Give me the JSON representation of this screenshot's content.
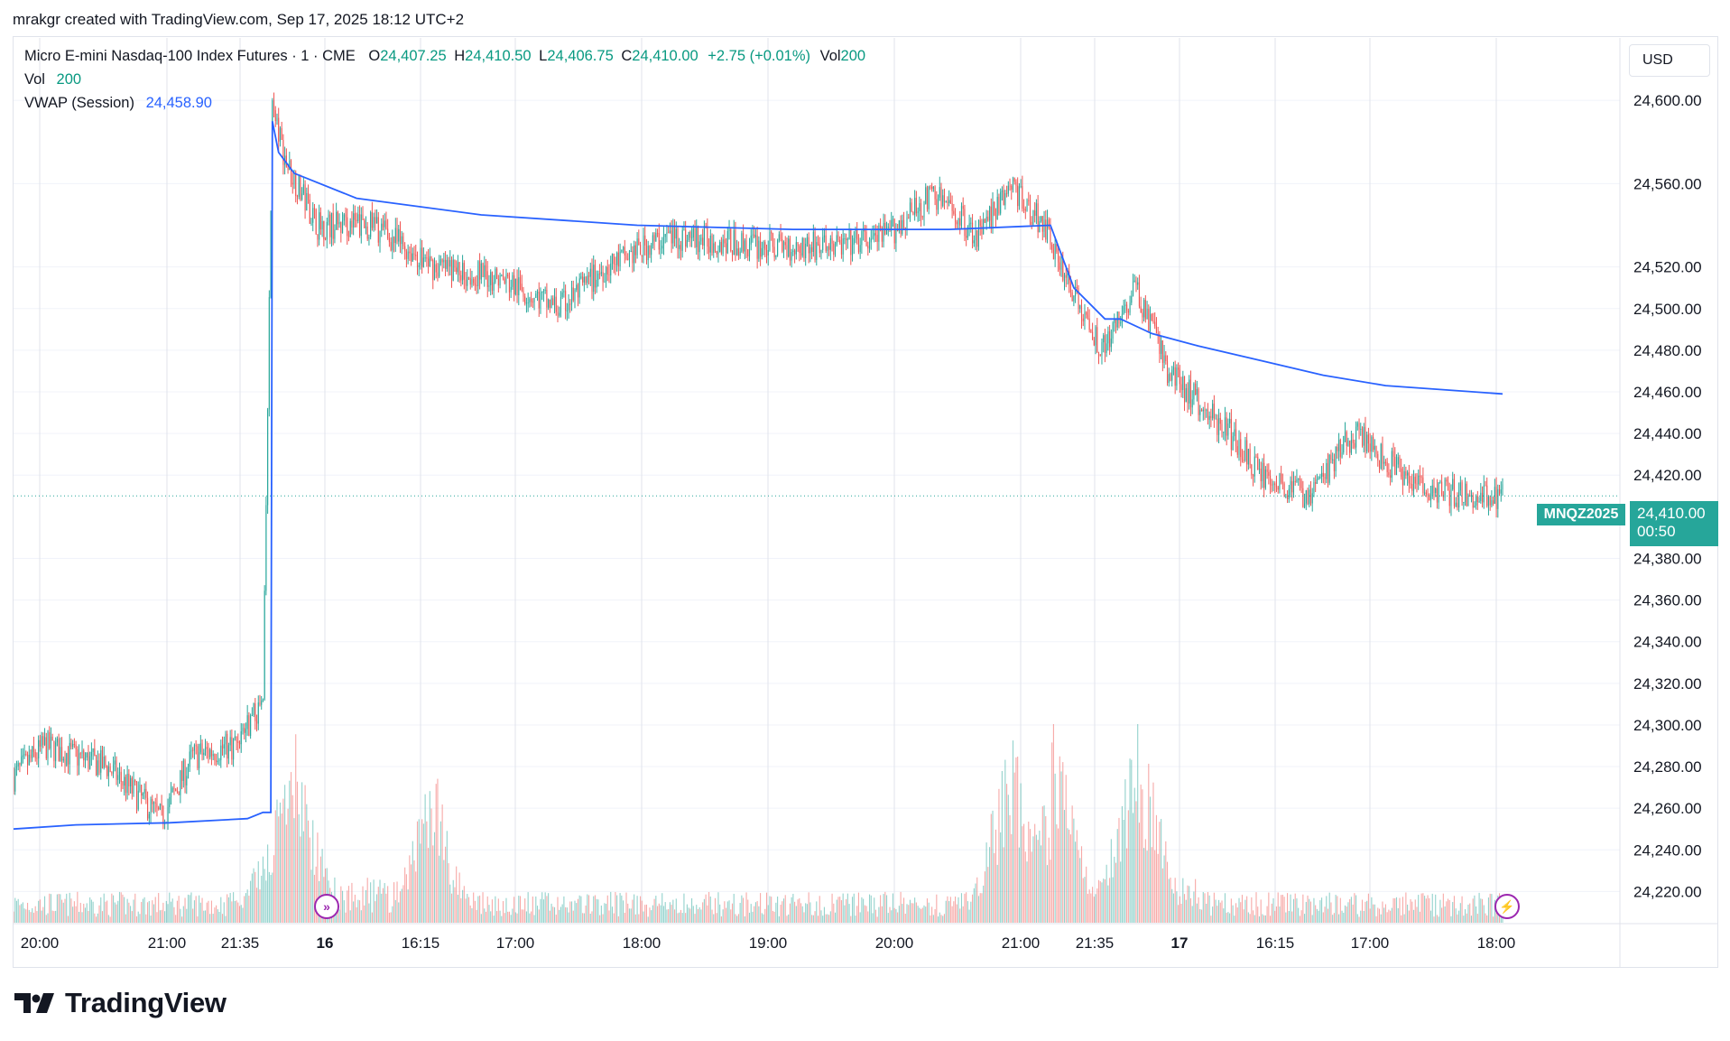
{
  "header": {
    "attribution": "mrakgr created with TradingView.com, Sep 17, 2025 18:12 UTC+2"
  },
  "legend": {
    "symbol": "Micro E-mini Nasdaq-100 Index Futures · 1 · CME",
    "o_label": "O",
    "o_value": "24,407.25",
    "h_label": "H",
    "h_value": "24,410.50",
    "l_label": "L",
    "l_value": "24,406.75",
    "c_label": "C",
    "c_value": "24,410.00",
    "change": "+2.75 (+0.01%)",
    "vol_label": "Vol",
    "vol_value": "200",
    "vol_row_label": "Vol",
    "vol_row_value": "200",
    "vwap_label": "VWAP (Session)",
    "vwap_value": "24,458.90"
  },
  "currency": "USD",
  "last_price": {
    "symbol": "MNQZ2025",
    "price": "24,410.00",
    "countdown": "00:50"
  },
  "logo": {
    "text": "TradingView"
  },
  "colors": {
    "up": "#26a69a",
    "down": "#ef5350",
    "vwap": "#2962ff",
    "grid": "#e0e3eb",
    "session_marker": "#9c27b0"
  },
  "icons": {
    "session_start": "session-break-icon",
    "realtime": "lightning-icon"
  },
  "chart_data": {
    "type": "candlestick",
    "symbol": "MNQZ2025",
    "interval": "1",
    "price_axis": {
      "ylim": [
        24205,
        24630
      ],
      "ticks": [
        "24,600.00",
        "24,560.00",
        "24,520.00",
        "24,500.00",
        "24,480.00",
        "24,460.00",
        "24,440.00",
        "24,420.00",
        "24,380.00",
        "24,360.00",
        "24,340.00",
        "24,320.00",
        "24,300.00",
        "24,280.00",
        "24,260.00",
        "24,240.00",
        "24,220.00"
      ],
      "tick_values": [
        24600,
        24560,
        24520,
        24500,
        24480,
        24460,
        24440,
        24420,
        24380,
        24360,
        24340,
        24320,
        24300,
        24280,
        24260,
        24240,
        24220
      ]
    },
    "time_axis": {
      "labels": [
        "20:00",
        "21:00",
        "21:35",
        "16",
        "16:15",
        "17:00",
        "18:00",
        "19:00",
        "20:00",
        "21:00",
        "21:35",
        "17",
        "16:15",
        "17:00",
        "18:00"
      ],
      "bold": [
        false,
        false,
        false,
        true,
        false,
        false,
        false,
        false,
        false,
        false,
        false,
        true,
        false,
        false,
        false
      ]
    },
    "price_path": {
      "description_points_time_index": [
        0,
        20,
        60,
        95,
        115,
        140,
        160,
        166,
        175,
        195,
        230,
        270,
        310,
        350,
        380,
        420,
        480,
        530,
        560,
        590,
        620,
        640,
        660,
        664,
        690,
        700,
        720,
        740,
        760,
        780,
        800,
        830,
        860,
        900,
        930,
        955
      ],
      "close_values": [
        24275,
        24290,
        24280,
        24255,
        24285,
        24290,
        24310,
        24595,
        24570,
        24540,
        24540,
        24520,
        24515,
        24500,
        24520,
        24535,
        24530,
        24530,
        24535,
        24555,
        24535,
        24560,
        24540,
        24535,
        24490,
        24480,
        24510,
        24470,
        24455,
        24440,
        24420,
        24410,
        24440,
        24415,
        24410,
        24410
      ]
    },
    "vwap_path": {
      "time_index": [
        0,
        40,
        100,
        150,
        160,
        165,
        166,
        170,
        180,
        220,
        300,
        400,
        500,
        600,
        665,
        670,
        680,
        700,
        710,
        730,
        760,
        800,
        840,
        880,
        955
      ],
      "values": [
        24250,
        24252,
        24253,
        24255,
        24258,
        24258,
        24590,
        24575,
        24565,
        24553,
        24545,
        24540,
        24538,
        24538,
        24540,
        24530,
        24510,
        24495,
        24495,
        24488,
        24482,
        24475,
        24468,
        24463,
        24459
      ]
    },
    "volume": {
      "baseline_note": "volume bars in lower pane",
      "spikes_time_index": [
        166,
        180,
        270,
        640,
        665,
        720
      ],
      "spike_values": [
        850,
        1250,
        1000,
        1800,
        1400,
        1300
      ],
      "typical_value": 180
    },
    "grid": true,
    "last_price_value": 24410.0
  }
}
